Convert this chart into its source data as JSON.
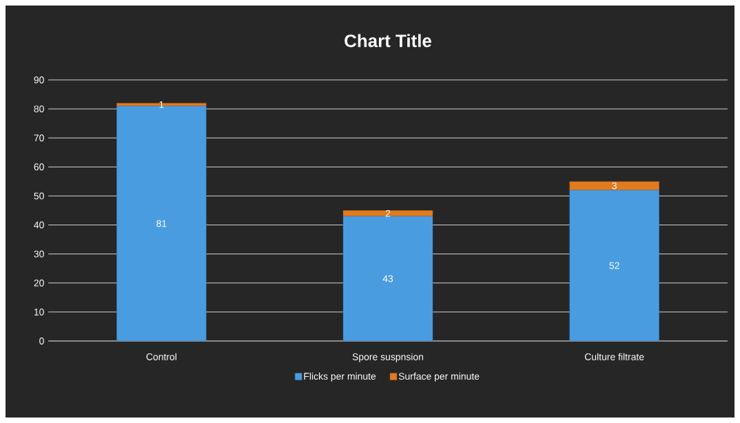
{
  "chart_data": {
    "type": "bar",
    "title": "Chart Title",
    "categories": [
      "Control",
      "Spore suspnsion",
      "Culture filtrate"
    ],
    "stacked": true,
    "series": [
      {
        "name": "Flicks per minute",
        "color": "#4a9ce0",
        "values": [
          81,
          43,
          52
        ]
      },
      {
        "name": "Surface per minute",
        "color": "#e07b20",
        "values": [
          1,
          2,
          3
        ]
      }
    ],
    "ylim": [
      0,
      90
    ],
    "yticks": [
      0,
      10,
      20,
      30,
      40,
      50,
      60,
      70,
      80,
      90
    ],
    "grid": "y",
    "legend": "bottom",
    "data_labels": true
  }
}
